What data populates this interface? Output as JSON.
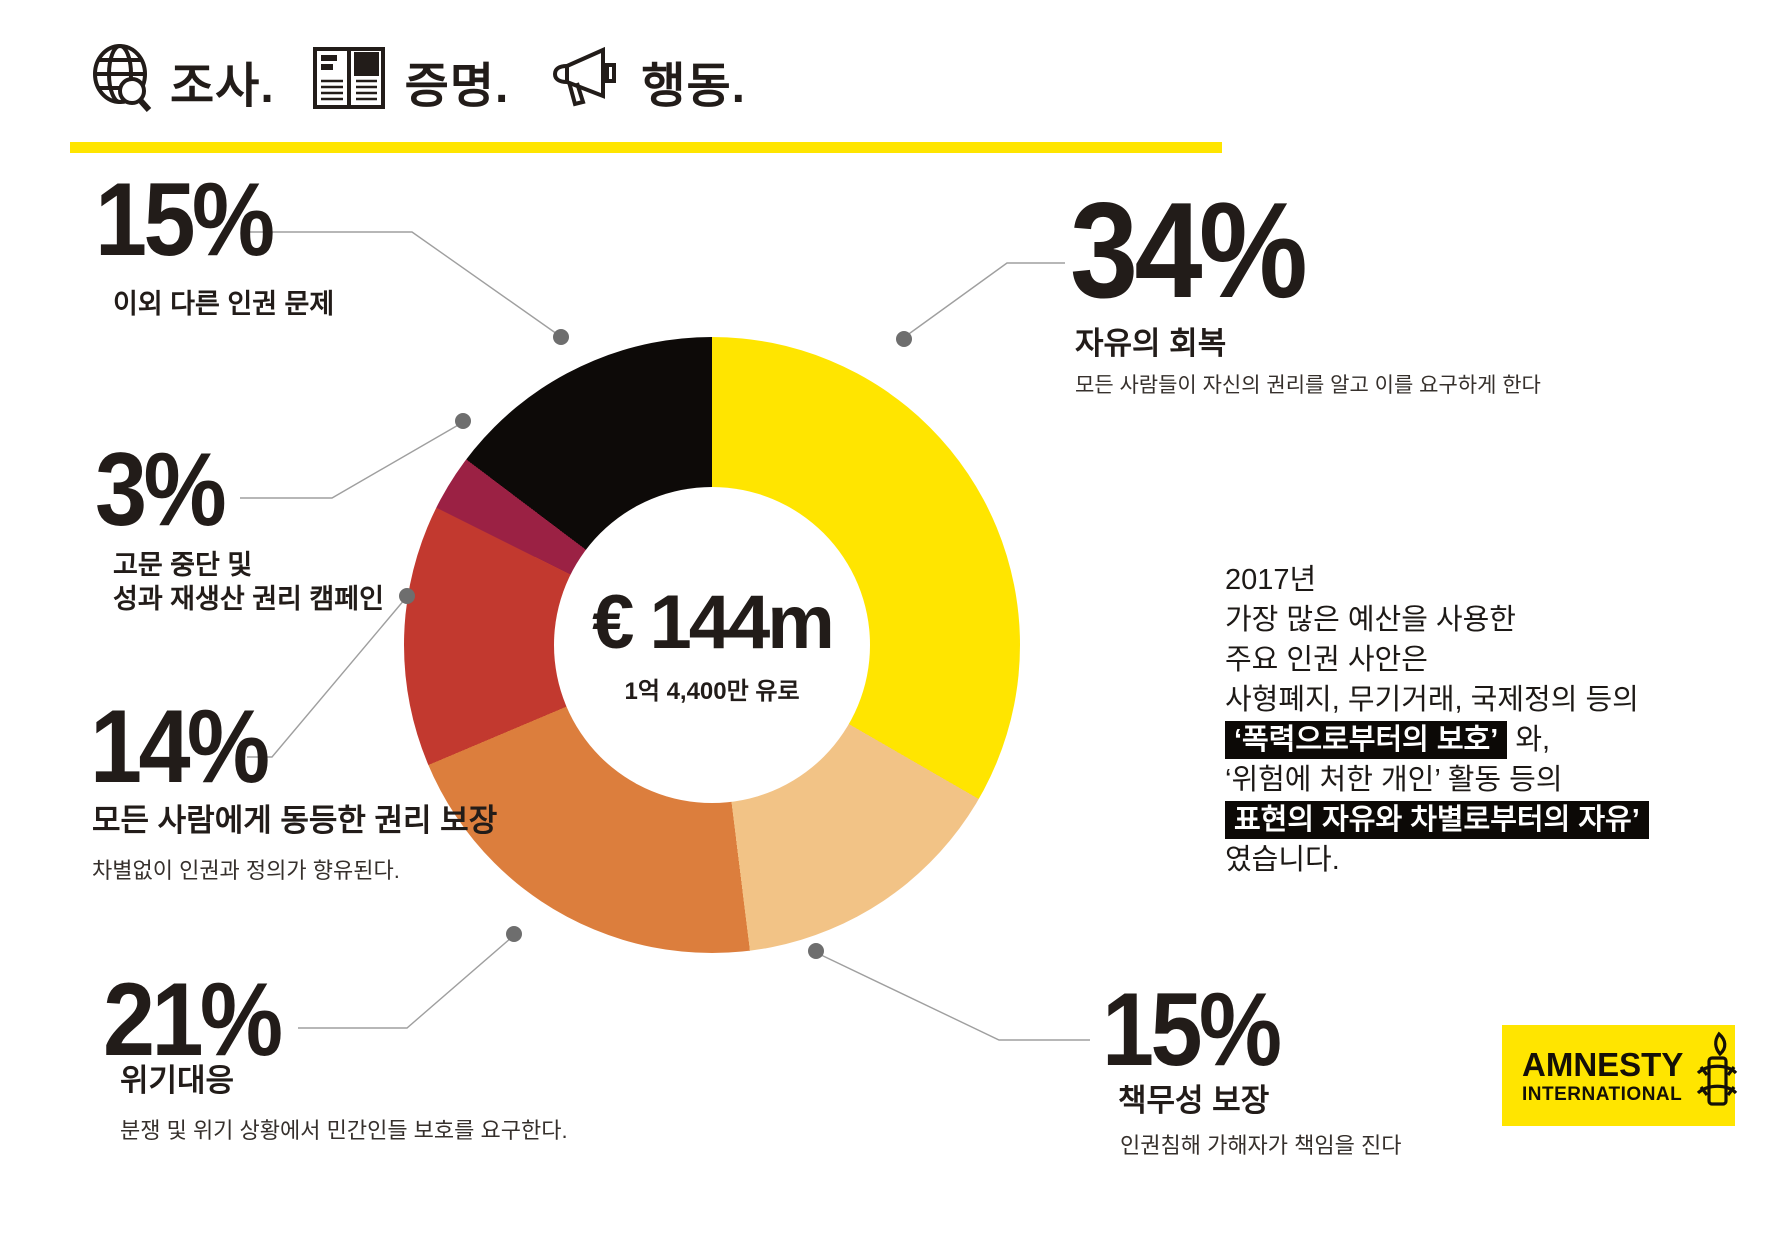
{
  "header": {
    "items": [
      {
        "icon": "globe-search-icon",
        "label": "조사."
      },
      {
        "icon": "report-book-icon",
        "label": "증명."
      },
      {
        "icon": "megaphone-icon",
        "label": "행동."
      }
    ]
  },
  "colors": {
    "amnesty_yellow": "#ffe500",
    "slice_tan": "#f2c386",
    "slice_orange": "#dc7e3d",
    "slice_red": "#c2392f",
    "slice_maroon": "#9b2144",
    "slice_black": "#0d0a08",
    "connector_gray": "#9f9f9f",
    "dot_gray": "#6e6e6e",
    "text_dark": "#221c19"
  },
  "chart_data": {
    "type": "pie",
    "subtype": "donut",
    "center": {
      "amount": "€ 144m",
      "caption": "1억 4,400만 유로"
    },
    "start_angle_deg": 0,
    "direction": "clockwise",
    "slices": [
      {
        "label": "자유의 회복",
        "value_pct": 34,
        "color": "#ffe500",
        "description": "모든 사람들이 자신의 권리를 알고 이를 요구하게 한다"
      },
      {
        "label": "책무성 보장",
        "value_pct": 15,
        "color": "#f2c386",
        "description": "인권침해 가해자가 책임을 진다"
      },
      {
        "label": "위기대응",
        "value_pct": 21,
        "color": "#dc7e3d",
        "description": "분쟁 및 위기 상황에서 민간인들 보호를 요구한다."
      },
      {
        "label": "모든 사람에게 동등한 권리 보장",
        "value_pct": 14,
        "color": "#c2392f",
        "description": "차별없이 인권과 정의가 향유된다."
      },
      {
        "label": "고문 중단 및 성과 재생산 권리 캠페인",
        "value_pct": 3,
        "color": "#9b2144",
        "description": ""
      },
      {
        "label": "이외 다른 인권 문제",
        "value_pct": 15,
        "color": "#0d0a08",
        "description": ""
      }
    ]
  },
  "callouts": {
    "other": {
      "value": "15%",
      "title": "이외 다른 인권 문제"
    },
    "torture": {
      "value": "3%",
      "title_line1": "고문 중단 및",
      "title_line2": "성과 재생산 권리 캠페인"
    },
    "equal": {
      "value": "14%",
      "title": "모든 사람에게 동등한 권리 보장",
      "description": "차별없이 인권과 정의가 향유된다."
    },
    "crisis": {
      "value": "21%",
      "title": "위기대응",
      "description": "분쟁 및 위기 상황에서 민간인들 보호를 요구한다."
    },
    "freedom": {
      "value": "34%",
      "title": "자유의 회복",
      "description": "모든 사람들이 자신의 권리를 알고 이를 요구하게 한다"
    },
    "accountability": {
      "value": "15%",
      "title": "책무성 보장",
      "description": "인권침해 가해자가 책임을 진다"
    }
  },
  "budget_note": {
    "lines": [
      [
        {
          "text": "2017년",
          "highlight": false
        }
      ],
      [
        {
          "text": "가장 많은 예산을 사용한",
          "highlight": false
        }
      ],
      [
        {
          "text": "주요 인권 사안은",
          "highlight": false
        }
      ],
      [
        {
          "text": "사형폐지, 무기거래, 국제정의 등의",
          "highlight": false
        }
      ],
      [
        {
          "text": "‘폭력으로부터의 보호’",
          "highlight": true
        },
        {
          "text": " 와,",
          "highlight": false
        }
      ],
      [
        {
          "text": "‘위험에 처한 개인’ 활동 등의",
          "highlight": false
        }
      ],
      [
        {
          "text": " 표현의 자유와 차별로부터의 자유’",
          "highlight": true
        }
      ],
      [
        {
          "text": "였습니다.",
          "highlight": false
        }
      ]
    ]
  },
  "logo": {
    "line1": "AMNESTY",
    "line2": "INTERNATIONAL"
  }
}
